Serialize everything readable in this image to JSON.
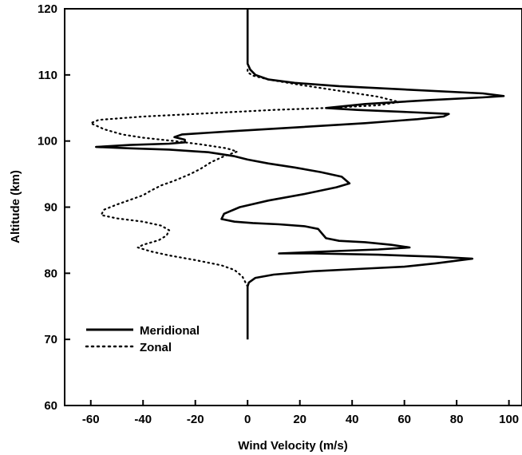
{
  "chart_data": {
    "type": "line",
    "title": "",
    "xlabel": "Wind Velocity (m/s)",
    "ylabel": "Altitude (km)",
    "xlim": [
      -70,
      105
    ],
    "ylim": [
      60,
      120
    ],
    "x_ticks": [
      -60,
      -40,
      -20,
      0,
      20,
      40,
      60,
      80,
      100
    ],
    "y_ticks": [
      60,
      70,
      80,
      90,
      100,
      110,
      120
    ],
    "grid": false,
    "legend_position": "lower-left",
    "series": [
      {
        "name": "Meridional",
        "style": "solid",
        "color": "#000000",
        "points": [
          [
            0,
            70
          ],
          [
            0,
            78
          ],
          [
            0.5,
            78.6
          ],
          [
            3,
            79.3
          ],
          [
            10,
            79.8
          ],
          [
            25,
            80.3
          ],
          [
            45,
            80.7
          ],
          [
            60,
            81
          ],
          [
            72,
            81.5
          ],
          [
            80,
            81.9
          ],
          [
            86,
            82.2
          ],
          [
            72,
            82.5
          ],
          [
            50,
            82.8
          ],
          [
            25,
            83
          ],
          [
            12,
            83
          ],
          [
            30,
            83.3
          ],
          [
            50,
            83.6
          ],
          [
            62,
            83.9
          ],
          [
            55,
            84.3
          ],
          [
            45,
            84.7
          ],
          [
            35,
            84.9
          ],
          [
            30,
            85.3
          ],
          [
            28.5,
            86
          ],
          [
            27,
            86.7
          ],
          [
            22,
            87.1
          ],
          [
            12,
            87.4
          ],
          [
            2,
            87.6
          ],
          [
            -5,
            87.8
          ],
          [
            -10,
            88.2
          ],
          [
            -9,
            89
          ],
          [
            -3,
            90
          ],
          [
            8,
            91
          ],
          [
            22,
            92
          ],
          [
            34,
            93
          ],
          [
            39,
            93.6
          ],
          [
            36,
            94.6
          ],
          [
            28,
            95.3
          ],
          [
            18,
            96
          ],
          [
            8,
            96.6
          ],
          [
            0,
            97.2
          ],
          [
            -5,
            97.7
          ],
          [
            -15,
            98.3
          ],
          [
            -30,
            98.7
          ],
          [
            -45,
            98.9
          ],
          [
            -58,
            99.1
          ],
          [
            -45,
            99.4
          ],
          [
            -30,
            99.6
          ],
          [
            -24,
            99.8
          ],
          [
            -24,
            100.2
          ],
          [
            -28,
            100.6
          ],
          [
            -25,
            101
          ],
          [
            -5,
            101.5
          ],
          [
            20,
            102.1
          ],
          [
            45,
            102.7
          ],
          [
            65,
            103.3
          ],
          [
            75,
            103.7
          ],
          [
            77,
            104.1
          ],
          [
            60,
            104.4
          ],
          [
            42,
            104.7
          ],
          [
            30,
            105
          ],
          [
            45,
            105.6
          ],
          [
            70,
            106.2
          ],
          [
            90,
            106.6
          ],
          [
            98,
            106.8
          ],
          [
            90,
            107.2
          ],
          [
            60,
            107.8
          ],
          [
            35,
            108.3
          ],
          [
            18,
            108.8
          ],
          [
            8,
            109.3
          ],
          [
            3,
            110
          ],
          [
            1,
            110.8
          ],
          [
            0,
            111.7
          ],
          [
            0,
            120
          ]
        ]
      },
      {
        "name": "Zonal",
        "style": "dotted",
        "color": "#000000",
        "points": [
          [
            0,
            78
          ],
          [
            -2,
            79.5
          ],
          [
            -5,
            80.5
          ],
          [
            -10,
            81.2
          ],
          [
            -20,
            82
          ],
          [
            -30,
            82.7
          ],
          [
            -37,
            83.3
          ],
          [
            -42,
            83.9
          ],
          [
            -40,
            84.3
          ],
          [
            -34,
            85
          ],
          [
            -31,
            85.7
          ],
          [
            -30,
            86.5
          ],
          [
            -33,
            87.2
          ],
          [
            -40,
            87.8
          ],
          [
            -50,
            88.3
          ],
          [
            -56,
            88.8
          ],
          [
            -55,
            89.6
          ],
          [
            -50,
            90.4
          ],
          [
            -45,
            91.1
          ],
          [
            -40,
            91.8
          ],
          [
            -37,
            92.5
          ],
          [
            -33,
            93.3
          ],
          [
            -28,
            94
          ],
          [
            -22,
            95
          ],
          [
            -18,
            95.8
          ],
          [
            -14,
            96.8
          ],
          [
            -9,
            97.7
          ],
          [
            -4,
            98.4
          ],
          [
            -8,
            98.9
          ],
          [
            -18,
            99.5
          ],
          [
            -28,
            100
          ],
          [
            -40,
            100.5
          ],
          [
            -48,
            101
          ],
          [
            -55,
            101.8
          ],
          [
            -60,
            102.7
          ],
          [
            -57,
            103.2
          ],
          [
            -40,
            103.7
          ],
          [
            -15,
            104.2
          ],
          [
            10,
            104.7
          ],
          [
            30,
            105
          ],
          [
            50,
            105.4
          ],
          [
            58,
            105.9
          ],
          [
            50,
            106.7
          ],
          [
            35,
            107.6
          ],
          [
            20,
            108.5
          ],
          [
            8,
            109.3
          ],
          [
            2,
            109.9
          ],
          [
            0,
            110.4
          ],
          [
            0,
            111
          ]
        ]
      }
    ]
  }
}
